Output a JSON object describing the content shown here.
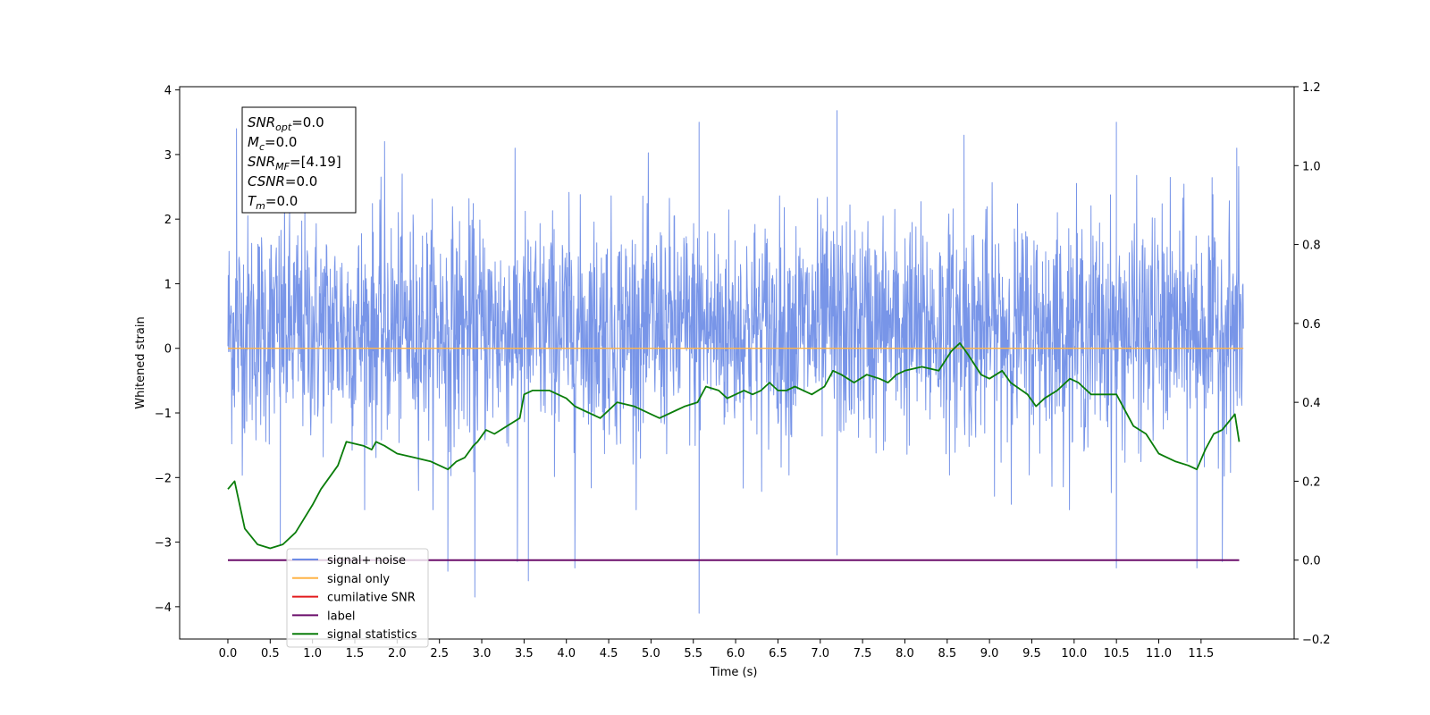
{
  "colors": {
    "signal_noise": "#6d8ce6",
    "signal_only": "#ffb347",
    "cumulative_snr": "#e31a1c",
    "label": "#6a0d6a",
    "signal_statistics": "#0a7d0a"
  },
  "info_box": {
    "lines": [
      {
        "name": "SNR",
        "sub": "opt",
        "value": "=0.0"
      },
      {
        "name": "M",
        "sub": "c",
        "value": "=0.0"
      },
      {
        "name": "SNR",
        "sub": "MF",
        "value": "=[4.19]"
      },
      {
        "name": "CSNR",
        "sub": "",
        "value": "=0.0"
      },
      {
        "name": "T",
        "sub": "m",
        "value": "=0.0"
      }
    ]
  },
  "chart_data": {
    "type": "line",
    "title": "",
    "xlabel": "Time (s)",
    "ylabel": "Whitened strain",
    "y2label": "",
    "xlim": [
      -0.57,
      12.6
    ],
    "ylim": [
      -4.5,
      4.05
    ],
    "y2lim": [
      -0.2,
      1.2
    ],
    "x_ticks": [
      0.0,
      0.5,
      1.0,
      1.5,
      2.0,
      2.5,
      3.0,
      3.5,
      4.0,
      4.5,
      5.0,
      5.5,
      6.0,
      6.5,
      7.0,
      7.5,
      8.0,
      8.5,
      9.0,
      9.5,
      10.0,
      10.5,
      11.0,
      11.5
    ],
    "x_tick_labels": [
      "0.0",
      "0.5",
      "1.0",
      "1.5",
      "2.0",
      "2.5",
      "3.0",
      "3.5",
      "4.0",
      "4.5",
      "5.0",
      "5.5",
      "6.0",
      "6.5",
      "7.0",
      "7.5",
      "8.0",
      "8.5",
      "9.0",
      "9.5",
      "10.0",
      "10.5",
      "11.0",
      "11.5"
    ],
    "y_ticks": [
      -4,
      -3,
      -2,
      -1,
      0,
      1,
      2,
      3,
      4
    ],
    "y_tick_labels": [
      "−4",
      "−3",
      "−2",
      "−1",
      "0",
      "1",
      "2",
      "3",
      "4"
    ],
    "y2_ticks": [
      -0.2,
      0.0,
      0.2,
      0.4,
      0.6,
      0.8,
      1.0,
      1.2
    ],
    "y2_tick_labels": [
      "−0.2",
      "0.0",
      "0.2",
      "0.4",
      "0.6",
      "0.8",
      "1.0",
      "1.2"
    ],
    "grid": false,
    "legend_position": "lower-left",
    "legend": [
      {
        "label": "signal+ noise",
        "color_key": "signal_noise"
      },
      {
        "label": "signal only",
        "color_key": "signal_only"
      },
      {
        "label": "cumilative SNR",
        "color_key": "cumulative_snr"
      },
      {
        "label": "label",
        "color_key": "label"
      },
      {
        "label": "signal statistics",
        "color_key": "signal_statistics"
      }
    ],
    "series": [
      {
        "name": "signal+ noise",
        "axis": "left",
        "x_range": [
          0.0,
          12.0
        ],
        "approx_mean": 0.3,
        "approx_typical_range": [
          -1.6,
          2.2
        ],
        "approx_extremes": [
          -4.1,
          3.68
        ],
        "spikes": [
          {
            "x": 0.1,
            "y": 3.4
          },
          {
            "x": 0.62,
            "y": -3.05
          },
          {
            "x": 1.85,
            "y": 3.2
          },
          {
            "x": 2.6,
            "y": -3.45
          },
          {
            "x": 2.92,
            "y": -3.85
          },
          {
            "x": 3.42,
            "y": -3.3
          },
          {
            "x": 3.55,
            "y": -3.6
          },
          {
            "x": 4.1,
            "y": -3.4
          },
          {
            "x": 5.57,
            "y": 3.5
          },
          {
            "x": 5.57,
            "y": -4.1
          },
          {
            "x": 7.2,
            "y": 3.68
          },
          {
            "x": 7.2,
            "y": -3.2
          },
          {
            "x": 8.7,
            "y": 3.3
          },
          {
            "x": 10.5,
            "y": 3.5
          },
          {
            "x": 10.5,
            "y": -3.4
          },
          {
            "x": 11.45,
            "y": -3.4
          },
          {
            "x": 11.75,
            "y": -3.3
          },
          {
            "x": 11.92,
            "y": 3.1
          }
        ]
      },
      {
        "name": "signal only",
        "axis": "left",
        "x": [
          0.0,
          12.0
        ],
        "values": [
          0.0,
          0.0
        ]
      },
      {
        "name": "label",
        "axis": "right",
        "x": [
          0.0,
          11.95
        ],
        "values": [
          0.0,
          0.0
        ]
      },
      {
        "name": "signal statistics",
        "axis": "right",
        "x": [
          0.0,
          0.08,
          0.2,
          0.35,
          0.5,
          0.65,
          0.8,
          1.0,
          1.1,
          1.3,
          1.4,
          1.6,
          1.7,
          1.75,
          1.85,
          2.0,
          2.2,
          2.4,
          2.5,
          2.6,
          2.7,
          2.8,
          2.9,
          2.95,
          3.05,
          3.15,
          3.3,
          3.45,
          3.5,
          3.6,
          3.8,
          3.9,
          4.0,
          4.1,
          4.2,
          4.4,
          4.5,
          4.6,
          4.8,
          5.0,
          5.1,
          5.3,
          5.4,
          5.55,
          5.65,
          5.8,
          5.9,
          6.0,
          6.1,
          6.2,
          6.3,
          6.4,
          6.5,
          6.6,
          6.7,
          6.8,
          6.9,
          7.05,
          7.15,
          7.25,
          7.4,
          7.55,
          7.7,
          7.8,
          7.9,
          8.0,
          8.2,
          8.4,
          8.55,
          8.65,
          8.75,
          8.9,
          9.0,
          9.15,
          9.25,
          9.45,
          9.55,
          9.65,
          9.8,
          9.95,
          10.05,
          10.2,
          10.4,
          10.5,
          10.7,
          10.85,
          11.0,
          11.2,
          11.35,
          11.45,
          11.55,
          11.65,
          11.75,
          11.9,
          11.95
        ],
        "values": [
          0.18,
          0.2,
          0.08,
          0.04,
          0.03,
          0.04,
          0.07,
          0.14,
          0.18,
          0.24,
          0.3,
          0.29,
          0.28,
          0.3,
          0.29,
          0.27,
          0.26,
          0.25,
          0.24,
          0.23,
          0.25,
          0.26,
          0.29,
          0.3,
          0.33,
          0.32,
          0.34,
          0.36,
          0.42,
          0.43,
          0.43,
          0.42,
          0.41,
          0.39,
          0.38,
          0.36,
          0.38,
          0.4,
          0.39,
          0.37,
          0.36,
          0.38,
          0.39,
          0.4,
          0.44,
          0.43,
          0.41,
          0.42,
          0.43,
          0.42,
          0.43,
          0.45,
          0.43,
          0.43,
          0.44,
          0.43,
          0.42,
          0.44,
          0.48,
          0.47,
          0.45,
          0.47,
          0.46,
          0.45,
          0.47,
          0.48,
          0.49,
          0.48,
          0.53,
          0.55,
          0.52,
          0.47,
          0.46,
          0.48,
          0.45,
          0.42,
          0.39,
          0.41,
          0.43,
          0.46,
          0.45,
          0.42,
          0.42,
          0.42,
          0.34,
          0.32,
          0.27,
          0.25,
          0.24,
          0.23,
          0.28,
          0.32,
          0.33,
          0.37,
          0.3
        ]
      }
    ]
  }
}
